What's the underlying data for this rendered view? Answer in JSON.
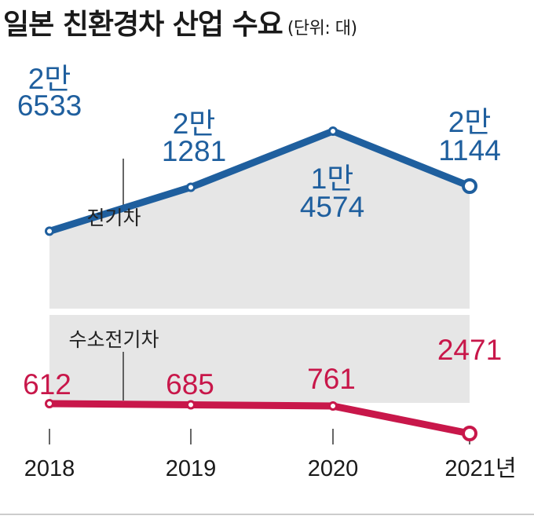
{
  "title": "일본 친환경차 산업 수요",
  "unit": "(단위: 대)",
  "colors": {
    "ev": "#1f5f9e",
    "fcev": "#c8174a",
    "area": "#e6e6e6",
    "text": "#1a1a1a"
  },
  "chart_data": {
    "type": "line",
    "categories": [
      "2018",
      "2019",
      "2020",
      "2021년"
    ],
    "series": [
      {
        "name": "전기차",
        "values": [
          26533,
          21281,
          14574,
          21144
        ],
        "labels": [
          [
            "2만",
            "6533"
          ],
          [
            "2만",
            "1281"
          ],
          [
            "1만",
            "4574"
          ],
          [
            "2만",
            "1144"
          ]
        ]
      },
      {
        "name": "수소전기차",
        "values": [
          612,
          685,
          761,
          2471
        ],
        "labels": [
          [
            "612"
          ],
          [
            "685"
          ],
          [
            "761"
          ],
          [
            "2471"
          ]
        ]
      }
    ]
  }
}
